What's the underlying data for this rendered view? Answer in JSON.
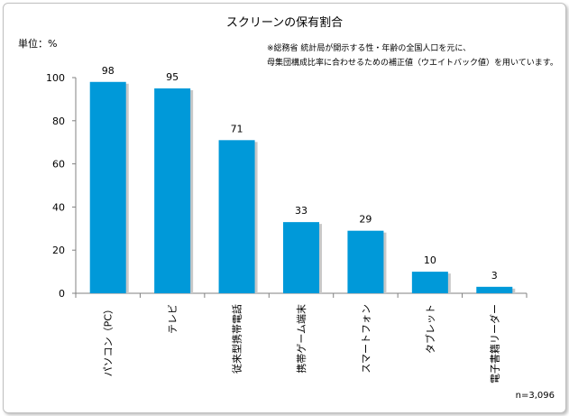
{
  "chart_data": {
    "type": "bar",
    "title": "スクリーンの保有割合",
    "ylabel": "単位：%",
    "xlabel": "",
    "ylim": [
      0,
      100
    ],
    "yticks": [
      0,
      20,
      40,
      60,
      80,
      100
    ],
    "grid": false,
    "categories": [
      "パソコン（PC）",
      "テレビ",
      "従来型携帯電話",
      "携帯ゲーム端末",
      "スマートフォン",
      "タブレット",
      "電子書籍リーダー"
    ],
    "values": [
      98,
      95,
      71,
      33,
      29,
      10,
      3
    ],
    "data_labels": [
      "98",
      "95",
      "71",
      "33",
      "29",
      "10",
      "3"
    ],
    "bar_color": "#0099d9",
    "notes": [
      "※総務省 統計局が開示する性・年齢の全国人口を元に、",
      "母集団構成比率に合わせるための補正値（ウエイトバック値）を用いています。"
    ],
    "sample_size": "n=3,096"
  }
}
